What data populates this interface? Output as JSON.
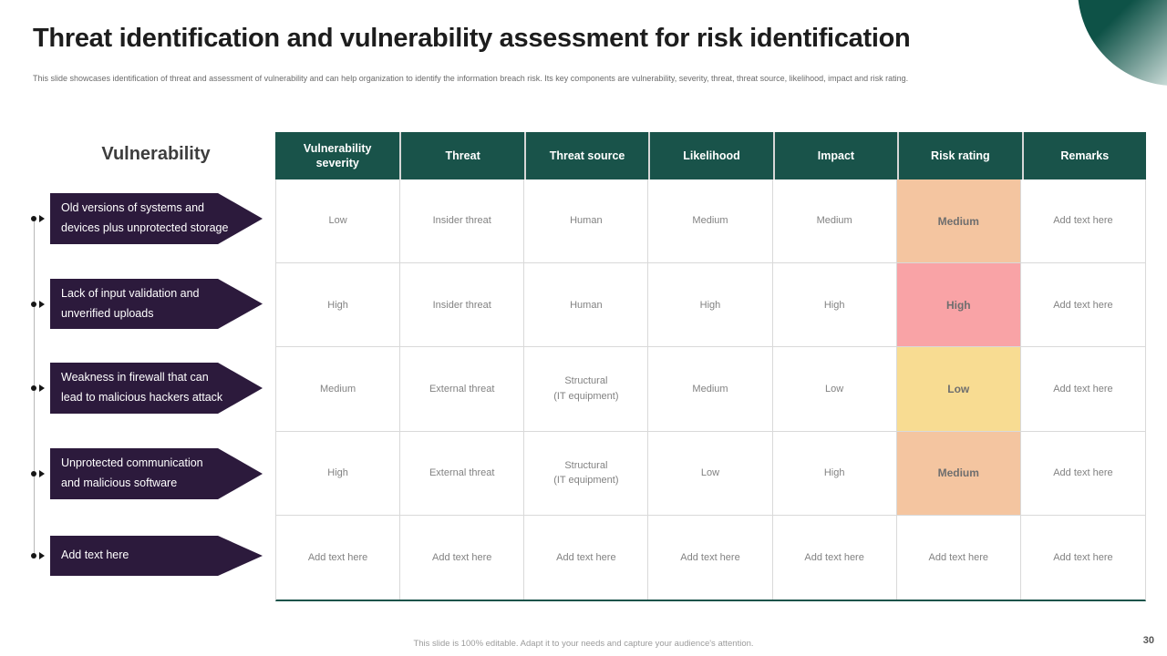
{
  "slide": {
    "title": "Threat identification and vulnerability assessment for risk identification",
    "subtitle": "This slide showcases identification of threat and assessment of vulnerability and can help organization to identify the information breach risk. Its key components are vulnerability, severity, threat, threat source, likelihood, impact and risk rating.",
    "footer_note": "This slide is 100% editable.  Adapt it to your needs and capture your audience's attention.",
    "page_number": "30"
  },
  "vulnerability_panel": {
    "heading": "Vulnerability",
    "items": [
      {
        "label": "Old versions of systems and\ndevices plus unprotected storage"
      },
      {
        "label": "Lack of input validation and\nunverified uploads"
      },
      {
        "label": "Weakness in firewall that can\nlead to malicious hackers attack"
      },
      {
        "label": "Unprotected communication\nand malicious software"
      },
      {
        "label": "Add text here"
      }
    ]
  },
  "table": {
    "headers": [
      "Vulnerability severity",
      "Threat",
      "Threat source",
      "Likelihood",
      "Impact",
      "Risk rating",
      "Remarks"
    ],
    "rows": [
      {
        "severity": "Low",
        "threat": "Insider threat",
        "threat_source": "Human",
        "likelihood": "Medium",
        "impact": "Medium",
        "risk_rating": "Medium",
        "remarks": "Add text here",
        "risk_color": "#f4c5a0"
      },
      {
        "severity": "High",
        "threat": "Insider threat",
        "threat_source": "Human",
        "likelihood": "High",
        "impact": "High",
        "risk_rating": "High",
        "remarks": "Add text here",
        "risk_color": "#f9a3a6"
      },
      {
        "severity": "Medium",
        "threat": "External threat",
        "threat_source": "Structural\n(IT equipment)",
        "likelihood": "Medium",
        "impact": "Low",
        "risk_rating": "Low",
        "remarks": "Add text here",
        "risk_color": "#f8dc92"
      },
      {
        "severity": "High",
        "threat": "External threat",
        "threat_source": "Structural\n(IT equipment)",
        "likelihood": "Low",
        "impact": "High",
        "risk_rating": "Medium",
        "remarks": "Add text here",
        "risk_color": "#f4c5a0"
      },
      {
        "severity": "Add text here",
        "threat": "Add text here",
        "threat_source": "Add text here",
        "likelihood": "Add text here",
        "impact": "Add text here",
        "risk_rating": "Add text here",
        "remarks": "Add text here",
        "risk_color": "#ffffff"
      }
    ]
  },
  "icons": {
    "connector_dot": "●",
    "connector_triangle": "►"
  },
  "colors": {
    "table_header_bg": "#19534a",
    "arrow_bg": "#2c1a3c",
    "risk_medium": "#f4c5a0",
    "risk_high": "#f9a3a6",
    "risk_low": "#f8dc92",
    "sphere_dark": "#0e5247"
  }
}
